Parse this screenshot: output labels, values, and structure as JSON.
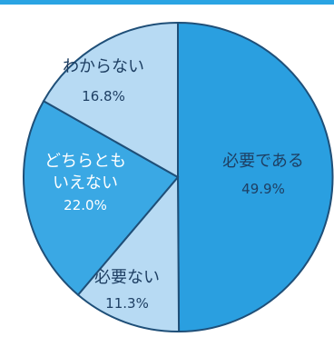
{
  "chart_data": {
    "type": "pie",
    "title": "",
    "slices": [
      {
        "label": "必要である",
        "value_label": "49.9%",
        "value": 49.9,
        "color": "#2a9fe0",
        "text_color": "#1e3f63"
      },
      {
        "label": "必要ない",
        "value_label": "11.3%",
        "value": 11.3,
        "color": "#b7daf3",
        "text_color": "#1e3f63"
      },
      {
        "label": "どちらとも\nいえない",
        "value_label": "22.0%",
        "value": 22.0,
        "color": "#3aa8e4",
        "text_color": "#ffffff"
      },
      {
        "label": "わからない",
        "value_label": "16.8%",
        "value": 16.8,
        "color": "#b7daf3",
        "text_color": "#1e3f63"
      }
    ],
    "start": "top",
    "direction": "clockwise",
    "border_color": "#1f4f78",
    "top_bar_color": "#2aa4e3"
  }
}
